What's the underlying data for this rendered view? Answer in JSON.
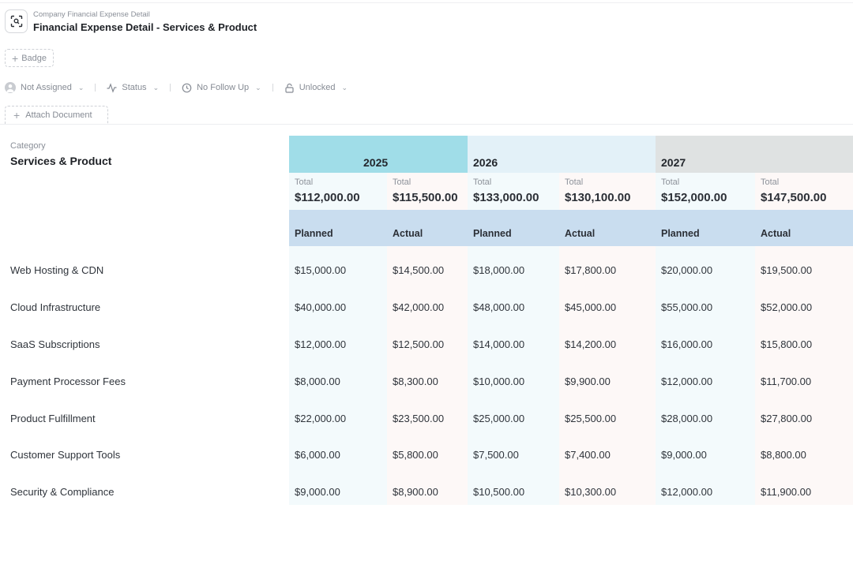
{
  "header": {
    "subtitle": "Company Financial Expense Detail",
    "title": "Financial Expense Detail - Services & Product",
    "icon": "scan-icon"
  },
  "badge_button": {
    "label": "Badge"
  },
  "properties": {
    "assignee": "Not Assigned",
    "status": "Status",
    "follow_up": "No Follow Up",
    "lock": "Unlocked"
  },
  "attach_button": {
    "label": "Attach Document"
  },
  "category": {
    "label": "Category",
    "value": "Services & Product"
  },
  "years": [
    {
      "year": "2025",
      "color": "#a0dde8",
      "totals": [
        {
          "label": "Total",
          "value": "$112,000.00"
        },
        {
          "label": "Total",
          "value": "$115,500.00"
        }
      ]
    },
    {
      "year": "2026",
      "color": "#e3f1f8",
      "totals": [
        {
          "label": "Total",
          "value": "$133,000.00"
        },
        {
          "label": "Total",
          "value": "$130,100.00"
        }
      ]
    },
    {
      "year": "2027",
      "color": "#dfe2e2",
      "totals": [
        {
          "label": "Total",
          "value": "$152,000.00"
        },
        {
          "label": "Total",
          "value": "$147,500.00"
        }
      ]
    }
  ],
  "sub_headers": [
    "Planned",
    "Actual",
    "Planned",
    "Actual",
    "Planned",
    "Actual"
  ],
  "rows": [
    {
      "label": "Web Hosting & CDN",
      "values": [
        "$15,000.00",
        "$14,500.00",
        "$18,000.00",
        "$17,800.00",
        "$20,000.00",
        "$19,500.00"
      ]
    },
    {
      "label": "Cloud Infrastructure",
      "values": [
        "$40,000.00",
        "$42,000.00",
        "$48,000.00",
        "$45,000.00",
        "$55,000.00",
        "$52,000.00"
      ]
    },
    {
      "label": "SaaS Subscriptions",
      "values": [
        "$12,000.00",
        "$12,500.00",
        "$14,000.00",
        "$14,200.00",
        "$16,000.00",
        "$15,800.00"
      ]
    },
    {
      "label": "Payment Processor Fees",
      "values": [
        "$8,000.00",
        "$8,300.00",
        "$10,000.00",
        "$9,900.00",
        "$12,000.00",
        "$11,700.00"
      ]
    },
    {
      "label": "Product Fulfillment",
      "values": [
        "$22,000.00",
        "$23,500.00",
        "$25,000.00",
        "$25,500.00",
        "$28,000.00",
        "$27,800.00"
      ]
    },
    {
      "label": "Customer Support Tools",
      "values": [
        "$6,000.00",
        "$5,800.00",
        "$7,500.00",
        "$7,400.00",
        "$9,000.00",
        "$8,800.00"
      ]
    },
    {
      "label": "Security & Compliance",
      "values": [
        "$9,000.00",
        "$8,900.00",
        "$10,500.00",
        "$10,300.00",
        "$12,000.00",
        "$11,900.00"
      ]
    }
  ],
  "colors": {
    "planned_bg": "#f3fafc",
    "actual_bg": "#fdf8f7",
    "subheader_bg": "#c9ddef"
  }
}
